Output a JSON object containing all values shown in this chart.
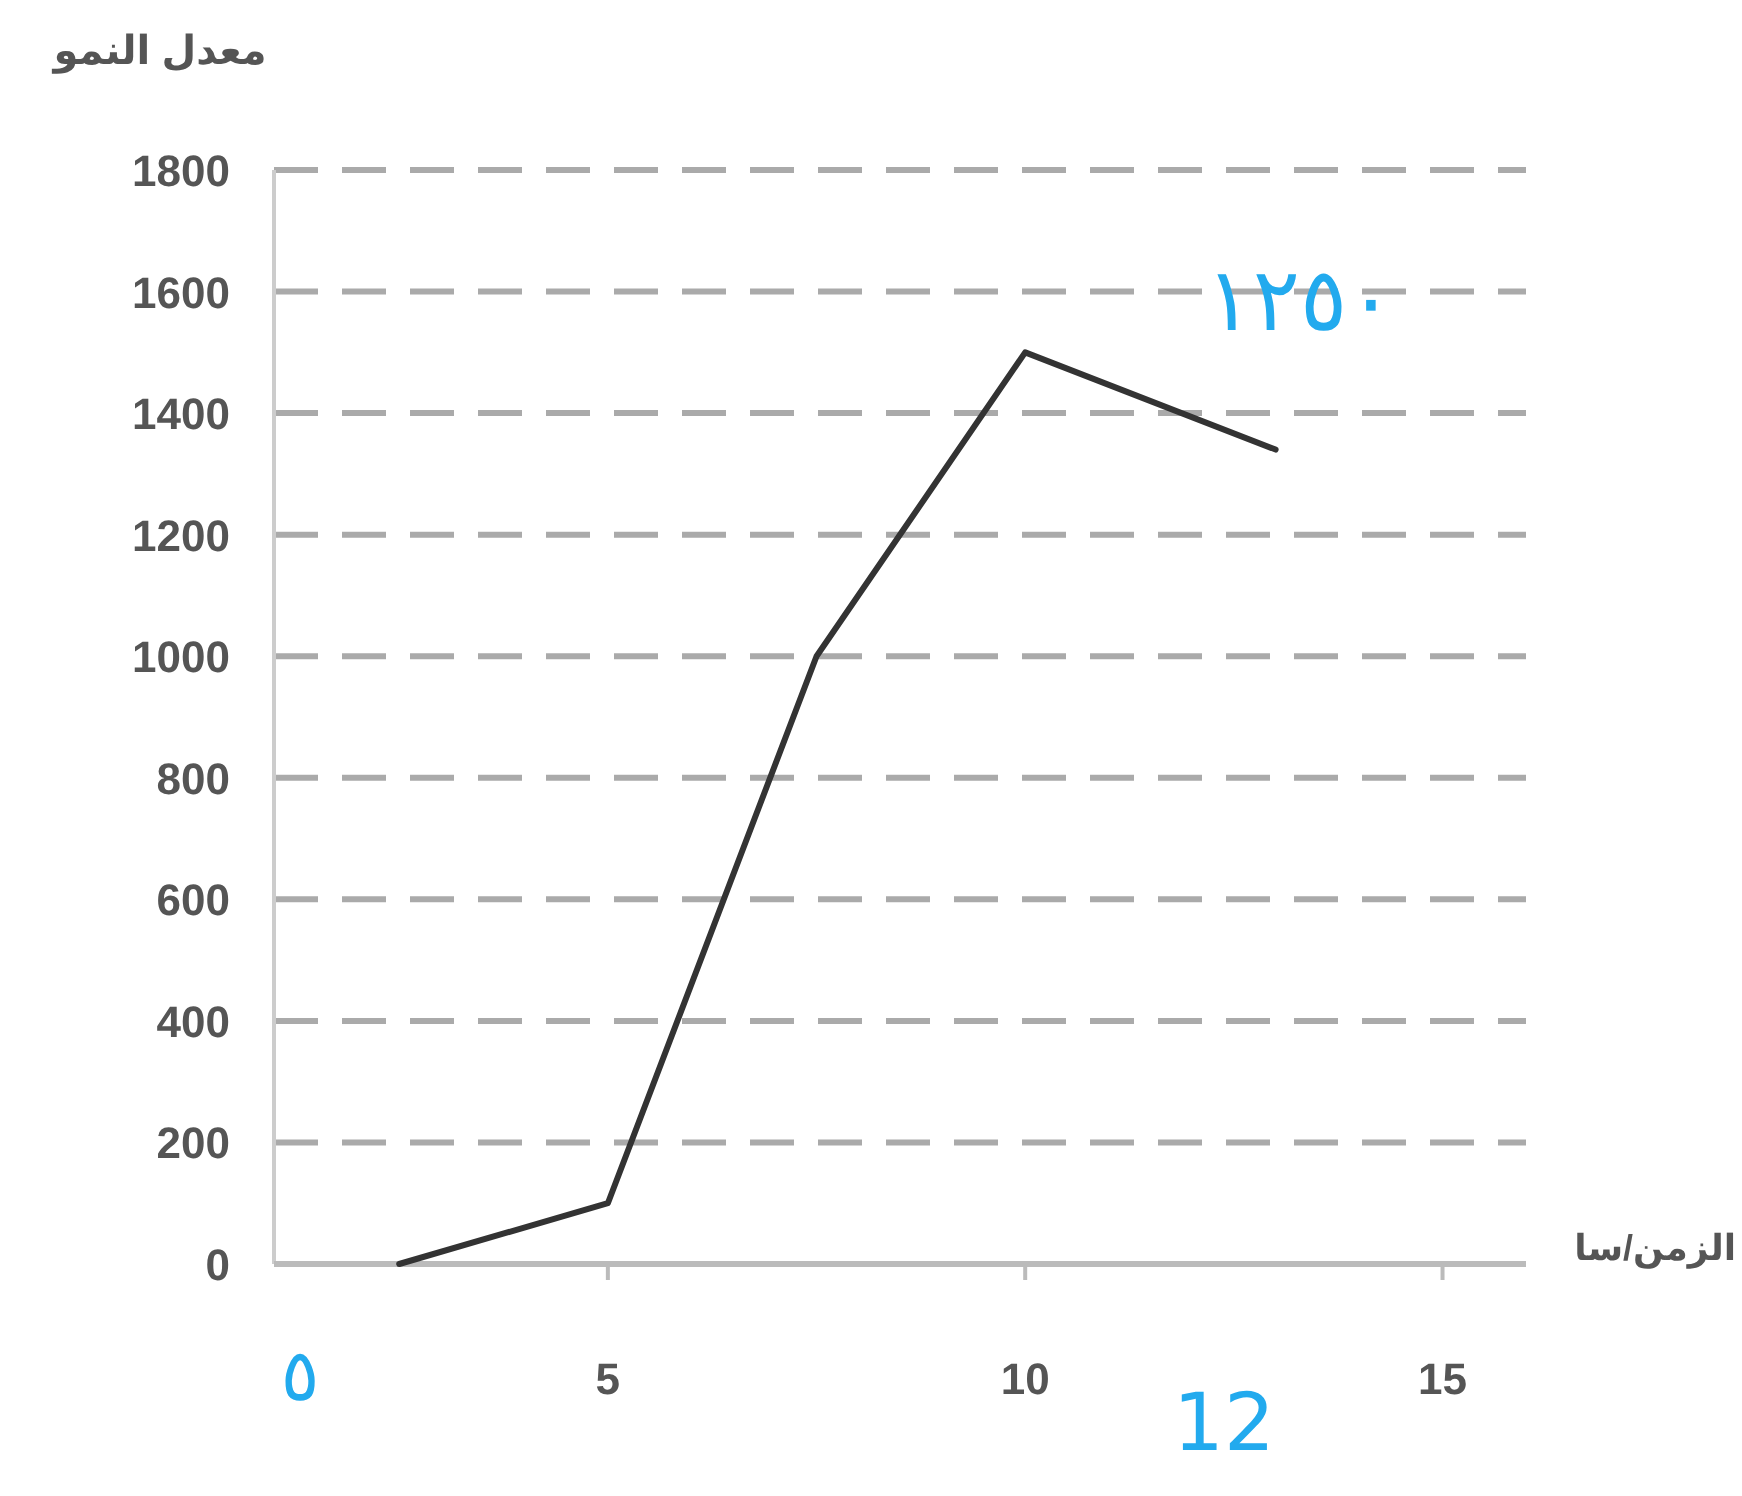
{
  "chart_data": {
    "type": "line",
    "xlabel": "الزمن/سا",
    "ylabel": "معدل النمو",
    "x": [
      2.5,
      5,
      7.5,
      10,
      13
    ],
    "series": [
      {
        "color": "#333333",
        "values": [
          0,
          100,
          1000,
          1500,
          1340
        ]
      }
    ],
    "xlim": [
      1,
      16
    ],
    "xticks": [
      5,
      10,
      15
    ],
    "ylim": [
      0,
      1800
    ],
    "yticks": [
      0,
      200,
      400,
      600,
      800,
      1000,
      1200,
      1400,
      1600,
      1800
    ],
    "grid": "y",
    "line_style": "solid",
    "marker": "none",
    "annotations": [
      "١٢٥٠",
      "12",
      "٥"
    ]
  }
}
